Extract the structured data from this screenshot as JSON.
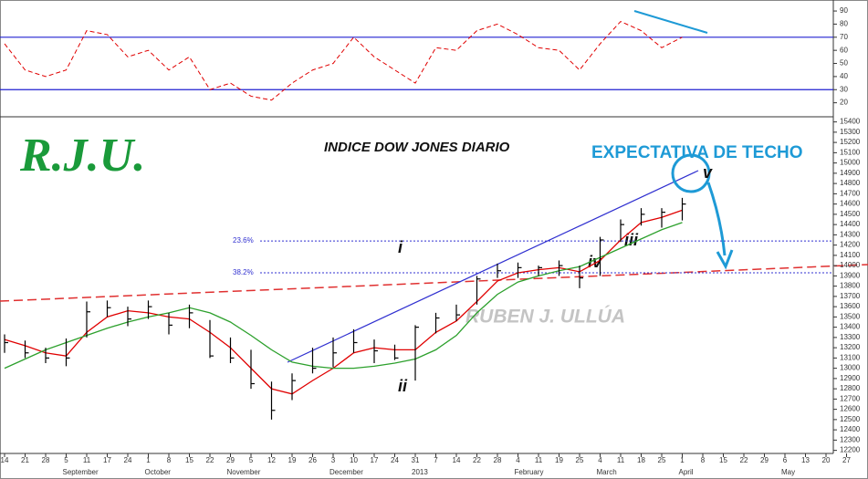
{
  "chart_data": [
    {
      "type": "line",
      "values": [
        65,
        45,
        40,
        45,
        75,
        72,
        55,
        60,
        45,
        55,
        30,
        35,
        25,
        22,
        35,
        45,
        50,
        70,
        55,
        45,
        35,
        62,
        60,
        75,
        80,
        72,
        62,
        60,
        45,
        65,
        82,
        75,
        62,
        70,
        null,
        null,
        null,
        null,
        null,
        null,
        null,
        null
      ],
      "color": "#e00000",
      "ylim": [
        10,
        97
      ],
      "yticks": [
        20,
        30,
        40,
        50,
        60,
        70,
        80,
        90
      ],
      "reference_lines": {
        "values": [
          70,
          30
        ],
        "color": "#2020d0"
      }
    },
    {
      "type": "ohlc",
      "title": "INDICE DOW JONES DIARIO",
      "categories": [
        "14",
        "21",
        "28",
        "5",
        "11",
        "17",
        "24",
        "1",
        "8",
        "15",
        "22",
        "29",
        "5",
        "12",
        "19",
        "26",
        "3",
        "10",
        "17",
        "24",
        "31",
        "7",
        "14",
        "22",
        "28",
        "4",
        "11",
        "19",
        "25",
        "4",
        "11",
        "18",
        "25",
        "1",
        "8",
        "15",
        "22",
        "29",
        "6",
        "13",
        "20",
        "27"
      ],
      "months": [
        null,
        null,
        null,
        "September",
        null,
        null,
        null,
        "October",
        null,
        null,
        null,
        "November",
        null,
        null,
        null,
        null,
        "December",
        null,
        null,
        null,
        "2013",
        null,
        null,
        null,
        null,
        "February",
        null,
        null,
        null,
        "March",
        null,
        null,
        null,
        "April",
        null,
        null,
        null,
        null,
        "May",
        null,
        null,
        null
      ],
      "high": [
        13330,
        13270,
        13200,
        13290,
        13650,
        13660,
        13600,
        13660,
        13540,
        13620,
        13470,
        13300,
        13180,
        12870,
        12950,
        13200,
        13300,
        13380,
        13280,
        13230,
        13420,
        13540,
        13620,
        13900,
        14020,
        14030,
        14000,
        14050,
        14000,
        14280,
        14450,
        14560,
        14560,
        14660,
        null,
        null,
        null,
        null,
        null,
        null,
        null,
        null
      ],
      "low": [
        13150,
        13100,
        13050,
        13020,
        13300,
        13500,
        13410,
        13480,
        13330,
        13390,
        13100,
        13050,
        12800,
        12500,
        12690,
        12950,
        13010,
        13150,
        13050,
        13080,
        12880,
        13340,
        13460,
        13620,
        13880,
        13880,
        13900,
        13900,
        13780,
        13900,
        14230,
        14390,
        14370,
        14440,
        null,
        null,
        null,
        null,
        null,
        null,
        null,
        null
      ],
      "close": [
        13250,
        13150,
        13100,
        13100,
        13550,
        13590,
        13480,
        13600,
        13420,
        13540,
        13120,
        13100,
        12850,
        12590,
        12880,
        13000,
        13150,
        13250,
        13170,
        13100,
        13400,
        13490,
        13520,
        13870,
        13950,
        13980,
        13980,
        14000,
        13880,
        14250,
        14400,
        14500,
        14520,
        14600,
        null,
        null,
        null,
        null,
        null,
        null,
        null,
        null
      ],
      "color": "#000000",
      "series": [
        {
          "color": "#e00000",
          "values": [
            13280,
            13220,
            13150,
            13120,
            13350,
            13500,
            13560,
            13540,
            13500,
            13480,
            13350,
            13200,
            13000,
            12800,
            12750,
            12880,
            13000,
            13150,
            13200,
            13180,
            13180,
            13350,
            13460,
            13650,
            13850,
            13930,
            13960,
            13980,
            13940,
            14050,
            14250,
            14420,
            14470,
            14540,
            null,
            null,
            null,
            null,
            null,
            null,
            null,
            null
          ]
        },
        {
          "color": "#2ca02c",
          "values": [
            13000,
            13090,
            13180,
            13250,
            13320,
            13390,
            13450,
            13500,
            13540,
            13590,
            13540,
            13450,
            13320,
            13180,
            13060,
            13020,
            13000,
            13000,
            13020,
            13050,
            13090,
            13180,
            13320,
            13540,
            13720,
            13840,
            13900,
            13950,
            13990,
            14080,
            14170,
            14260,
            14350,
            14420,
            null,
            null,
            null,
            null,
            null,
            null,
            null,
            null
          ]
        }
      ],
      "fib_levels": [
        {
          "label": "23.6%",
          "value": 14240
        },
        {
          "label": "38.2%",
          "value": 13930
        }
      ],
      "annotations": {
        "logo": "R.J.U.",
        "forecast": "EXPECTATIVA DE TECHO",
        "watermark": "RUBEN J. ULLÚA",
        "waves": [
          "i",
          "ii",
          "iii",
          "iv",
          "v"
        ]
      },
      "ylim": [
        12170,
        15450
      ],
      "yticks": [
        12200,
        12300,
        12400,
        12500,
        12600,
        12700,
        12800,
        12900,
        13000,
        13100,
        13200,
        13300,
        13400,
        13500,
        13600,
        13700,
        13800,
        13900,
        14000,
        14100,
        14200,
        14300,
        14400,
        14500,
        14600,
        14700,
        14800,
        14900,
        15000,
        15100,
        15200,
        15300,
        15400
      ]
    }
  ]
}
